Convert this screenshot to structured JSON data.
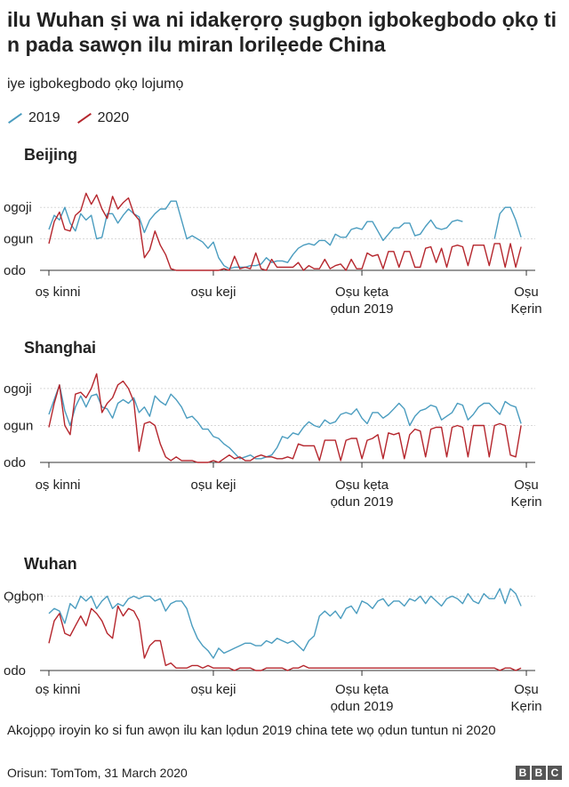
{
  "title": "ilu Wuhan ṣi wa ni idakẹrọrọ ṣugbọn igbokegbodo ọkọ ti n pada sawọn ilu miran lorilẹede China",
  "subtitle": "iye igbokegbodo ọkọ lojumọ",
  "legend": [
    {
      "label": "2019",
      "color": "#4a9cbf"
    },
    {
      "label": "2020",
      "color": "#b5262d"
    }
  ],
  "footnote": "Akojọpọ iroyin ko si fun awọn ilu kan lọdun 2019 china tete wọ ọdun tuntun ni 2020",
  "source": "Orisun: TomTom, 31 March 2020",
  "logo": [
    "B",
    "B",
    "C"
  ],
  "chart_data": [
    {
      "type": "line",
      "title": "Beijing",
      "y_tick_labels": [
        "odo",
        "ogun",
        "ogoji"
      ],
      "y_tick_values": [
        0,
        20,
        40
      ],
      "ylim": [
        0,
        52
      ],
      "xlim": [
        0,
        91
      ],
      "x_tick_labels": [
        "oṣ kinni",
        "oṣu keji",
        "Oṣu kẹta ọdun 2019",
        "Oṣu Kẹrin"
      ],
      "x_tick_positions": [
        0,
        31,
        59,
        90
      ],
      "series": [
        {
          "name": "2019",
          "color": "#4a9cbf",
          "gaps_after": [
            78
          ],
          "x": [
            0,
            1,
            2,
            3,
            4,
            5,
            6,
            7,
            8,
            9,
            10,
            11,
            12,
            13,
            14,
            15,
            16,
            17,
            18,
            19,
            20,
            21,
            22,
            23,
            24,
            25,
            26,
            27,
            28,
            29,
            30,
            31,
            32,
            33,
            34,
            35,
            36,
            37,
            38,
            39,
            40,
            41,
            42,
            43,
            44,
            45,
            46,
            47,
            48,
            49,
            50,
            51,
            52,
            53,
            54,
            55,
            56,
            57,
            58,
            59,
            60,
            61,
            62,
            63,
            64,
            65,
            66,
            67,
            68,
            69,
            70,
            71,
            72,
            73,
            74,
            75,
            76,
            77,
            78,
            84,
            85,
            86,
            87,
            88,
            89
          ],
          "y": [
            26,
            35,
            32,
            40,
            30,
            25,
            36,
            32,
            35,
            20,
            21,
            36,
            36,
            30,
            35,
            39,
            36,
            34,
            24,
            32,
            36,
            39,
            39,
            44,
            44,
            32,
            20,
            22,
            20,
            18,
            14,
            18,
            8,
            3,
            1,
            2,
            2,
            2,
            3,
            3,
            4,
            8,
            5,
            6,
            6,
            5,
            10,
            14,
            16,
            17,
            16,
            19,
            19,
            16,
            23,
            21,
            21,
            26,
            27,
            26,
            31,
            31,
            25,
            19,
            23,
            27,
            27,
            30,
            30,
            22,
            23,
            28,
            32,
            27,
            26,
            27,
            31,
            32,
            31,
            20,
            36,
            40,
            40,
            32,
            21
          ]
        },
        {
          "name": "2020",
          "color": "#b5262d",
          "x": [
            0,
            1,
            2,
            3,
            4,
            5,
            6,
            7,
            8,
            9,
            10,
            11,
            12,
            13,
            14,
            15,
            16,
            17,
            18,
            19,
            20,
            21,
            22,
            23,
            24,
            25,
            26,
            27,
            28,
            29,
            30,
            31,
            32,
            33,
            34,
            35,
            36,
            37,
            38,
            39,
            40,
            41,
            42,
            43,
            44,
            45,
            46,
            47,
            48,
            49,
            50,
            51,
            52,
            53,
            54,
            55,
            56,
            57,
            58,
            59,
            60,
            61,
            62,
            63,
            64,
            65,
            66,
            67,
            68,
            69,
            70,
            71,
            72,
            73,
            74,
            75,
            76,
            77,
            78,
            79,
            80,
            81,
            82,
            83,
            84,
            85,
            86,
            87,
            88,
            89
          ],
          "y": [
            17,
            31,
            37,
            26,
            25,
            35,
            38,
            49,
            42,
            48,
            39,
            33,
            47,
            39,
            43,
            46,
            36,
            32,
            8,
            13,
            25,
            16,
            10,
            1,
            0,
            0,
            0,
            0,
            0,
            0,
            0,
            0,
            0,
            1,
            0,
            9,
            1,
            2,
            1,
            11,
            1,
            0,
            7,
            2,
            2,
            2,
            2,
            5,
            0,
            3,
            1,
            1,
            7,
            1,
            3,
            4,
            0,
            7,
            1,
            1,
            11,
            9,
            10,
            1,
            12,
            12,
            2,
            12,
            12,
            2,
            2,
            14,
            15,
            5,
            14,
            2,
            15,
            16,
            15,
            3,
            16,
            16,
            16,
            3,
            17,
            17,
            2,
            17,
            2,
            15
          ]
        }
      ]
    },
    {
      "type": "line",
      "title": "Shanghai",
      "y_tick_labels": [
        "odo",
        "ogun",
        "ogoji"
      ],
      "y_tick_values": [
        0,
        20,
        40
      ],
      "ylim": [
        0,
        52
      ],
      "xlim": [
        0,
        91
      ],
      "x_tick_labels": [
        "oṣ kinni",
        "oṣu keji",
        "Oṣu kẹta ọdun 2019",
        "Oṣu Kẹrin"
      ],
      "x_tick_positions": [
        0,
        31,
        59,
        90
      ],
      "series": [
        {
          "name": "2019",
          "color": "#4a9cbf",
          "x": [
            0,
            1,
            2,
            3,
            4,
            5,
            6,
            7,
            8,
            9,
            10,
            11,
            12,
            13,
            14,
            15,
            16,
            17,
            18,
            19,
            20,
            21,
            22,
            23,
            24,
            25,
            26,
            27,
            28,
            29,
            30,
            31,
            32,
            33,
            34,
            35,
            36,
            37,
            38,
            39,
            40,
            41,
            42,
            43,
            44,
            45,
            46,
            47,
            48,
            49,
            50,
            51,
            52,
            53,
            54,
            55,
            56,
            57,
            58,
            59,
            60,
            61,
            62,
            63,
            64,
            65,
            66,
            67,
            68,
            69,
            70,
            71,
            72,
            73,
            74,
            75,
            76,
            77,
            78,
            79,
            80,
            81,
            82,
            83,
            84,
            85,
            86,
            87,
            88,
            89
          ],
          "y": [
            26,
            34,
            42,
            28,
            20,
            30,
            36,
            30,
            36,
            37,
            30,
            29,
            24,
            32,
            34,
            32,
            35,
            27,
            30,
            25,
            36,
            33,
            31,
            37,
            34,
            30,
            24,
            25,
            22,
            18,
            18,
            14,
            13,
            10,
            8,
            5,
            2,
            3,
            4,
            2,
            2,
            3,
            4,
            8,
            14,
            13,
            16,
            15,
            19,
            22,
            20,
            19,
            23,
            21,
            22,
            26,
            27,
            26,
            29,
            24,
            21,
            27,
            27,
            24,
            26,
            29,
            32,
            29,
            20,
            25,
            28,
            29,
            31,
            30,
            23,
            25,
            27,
            32,
            31,
            23,
            26,
            30,
            32,
            32,
            29,
            26,
            33,
            31,
            30,
            21
          ]
        },
        {
          "name": "2020",
          "color": "#b5262d",
          "x": [
            0,
            1,
            2,
            3,
            4,
            5,
            6,
            7,
            8,
            9,
            10,
            11,
            12,
            13,
            14,
            15,
            16,
            17,
            18,
            19,
            20,
            21,
            22,
            23,
            24,
            25,
            26,
            27,
            28,
            29,
            30,
            31,
            32,
            33,
            34,
            35,
            36,
            37,
            38,
            39,
            40,
            41,
            42,
            43,
            44,
            45,
            46,
            47,
            48,
            49,
            50,
            51,
            52,
            53,
            54,
            55,
            56,
            57,
            58,
            59,
            60,
            61,
            62,
            63,
            64,
            65,
            66,
            67,
            68,
            69,
            70,
            71,
            72,
            73,
            74,
            75,
            76,
            77,
            78,
            79,
            80,
            81,
            82,
            83,
            84,
            85,
            86,
            87,
            88,
            89
          ],
          "y": [
            19,
            32,
            42,
            20,
            15,
            37,
            38,
            35,
            40,
            48,
            27,
            32,
            35,
            42,
            44,
            40,
            33,
            6,
            21,
            22,
            20,
            10,
            3,
            1,
            3,
            1,
            1,
            1,
            0,
            0,
            0,
            1,
            0,
            2,
            4,
            2,
            3,
            1,
            1,
            3,
            4,
            3,
            3,
            2,
            2,
            3,
            2,
            10,
            9,
            9,
            9,
            1,
            12,
            12,
            12,
            1,
            12,
            13,
            13,
            2,
            12,
            13,
            15,
            2,
            16,
            15,
            16,
            2,
            15,
            18,
            17,
            3,
            18,
            19,
            19,
            3,
            19,
            20,
            19,
            3,
            20,
            20,
            20,
            3,
            20,
            21,
            20,
            4,
            3,
            20
          ]
        }
      ]
    },
    {
      "type": "line",
      "title": "Wuhan",
      "y_tick_labels": [
        "odo",
        "Ọgbọn"
      ],
      "y_tick_values": [
        0,
        30
      ],
      "ylim": [
        0,
        33
      ],
      "xlim": [
        0,
        91
      ],
      "x_tick_labels": [
        "oṣ kinni",
        "oṣu keji",
        "Oṣu kẹta ọdun 2019",
        "Oṣu Kẹrin"
      ],
      "x_tick_positions": [
        0,
        31,
        59,
        90
      ],
      "series": [
        {
          "name": "2019",
          "color": "#4a9cbf",
          "x": [
            0,
            1,
            2,
            3,
            4,
            5,
            6,
            7,
            8,
            9,
            10,
            11,
            12,
            13,
            14,
            15,
            16,
            17,
            18,
            19,
            20,
            21,
            22,
            23,
            24,
            25,
            26,
            27,
            28,
            29,
            30,
            31,
            32,
            33,
            34,
            35,
            36,
            37,
            38,
            39,
            40,
            41,
            42,
            43,
            44,
            45,
            46,
            47,
            48,
            49,
            50,
            51,
            52,
            53,
            54,
            55,
            56,
            57,
            58,
            59,
            60,
            61,
            62,
            63,
            64,
            65,
            66,
            67,
            68,
            69,
            70,
            71,
            72,
            73,
            74,
            75,
            76,
            77,
            78,
            79,
            80,
            81,
            82,
            83,
            84,
            85,
            86,
            87,
            88,
            89
          ],
          "y": [
            23,
            25,
            24,
            19,
            27,
            25,
            30,
            28,
            30,
            25,
            28,
            30,
            25,
            27,
            26,
            29,
            30,
            29,
            30,
            30,
            28,
            29,
            24,
            27,
            28,
            28,
            25,
            18,
            13,
            10,
            8,
            5,
            9,
            7,
            8,
            9,
            10,
            11,
            11,
            10,
            10,
            12,
            11,
            13,
            12,
            11,
            12,
            10,
            8,
            12,
            14,
            22,
            24,
            22,
            24,
            21,
            25,
            26,
            23,
            28,
            27,
            25,
            28,
            29,
            26,
            28,
            28,
            26,
            29,
            28,
            30,
            27,
            30,
            28,
            26,
            29,
            30,
            29,
            27,
            31,
            28,
            27,
            31,
            29,
            29,
            33,
            27,
            33,
            31,
            26
          ]
        },
        {
          "name": "2020",
          "color": "#b5262d",
          "x": [
            0,
            1,
            2,
            3,
            4,
            5,
            6,
            7,
            8,
            9,
            10,
            11,
            12,
            13,
            14,
            15,
            16,
            17,
            18,
            19,
            20,
            21,
            22,
            23,
            24,
            25,
            26,
            27,
            28,
            29,
            30,
            31,
            32,
            33,
            34,
            35,
            36,
            37,
            38,
            39,
            40,
            41,
            42,
            43,
            44,
            45,
            46,
            47,
            48,
            49,
            50,
            51,
            52,
            53,
            54,
            55,
            56,
            57,
            58,
            59,
            60,
            61,
            62,
            63,
            64,
            65,
            66,
            67,
            68,
            69,
            70,
            71,
            72,
            73,
            74,
            75,
            76,
            77,
            78,
            79,
            80,
            81,
            82,
            83,
            84,
            85,
            86,
            87,
            88,
            89
          ],
          "y": [
            11,
            20,
            23,
            15,
            14,
            18,
            22,
            18,
            25,
            23,
            20,
            15,
            13,
            26,
            22,
            25,
            24,
            20,
            5,
            10,
            12,
            12,
            2,
            3,
            1,
            1,
            1,
            2,
            2,
            1,
            2,
            1,
            1,
            1,
            1,
            0,
            1,
            1,
            1,
            0,
            0,
            1,
            1,
            1,
            1,
            0,
            1,
            1,
            2,
            1,
            1,
            1,
            1,
            1,
            1,
            1,
            1,
            1,
            1,
            1,
            1,
            1,
            1,
            1,
            1,
            1,
            1,
            1,
            1,
            1,
            1,
            1,
            1,
            1,
            1,
            1,
            1,
            1,
            1,
            1,
            1,
            1,
            1,
            1,
            1,
            0,
            1,
            1,
            0,
            1
          ]
        }
      ]
    }
  ]
}
